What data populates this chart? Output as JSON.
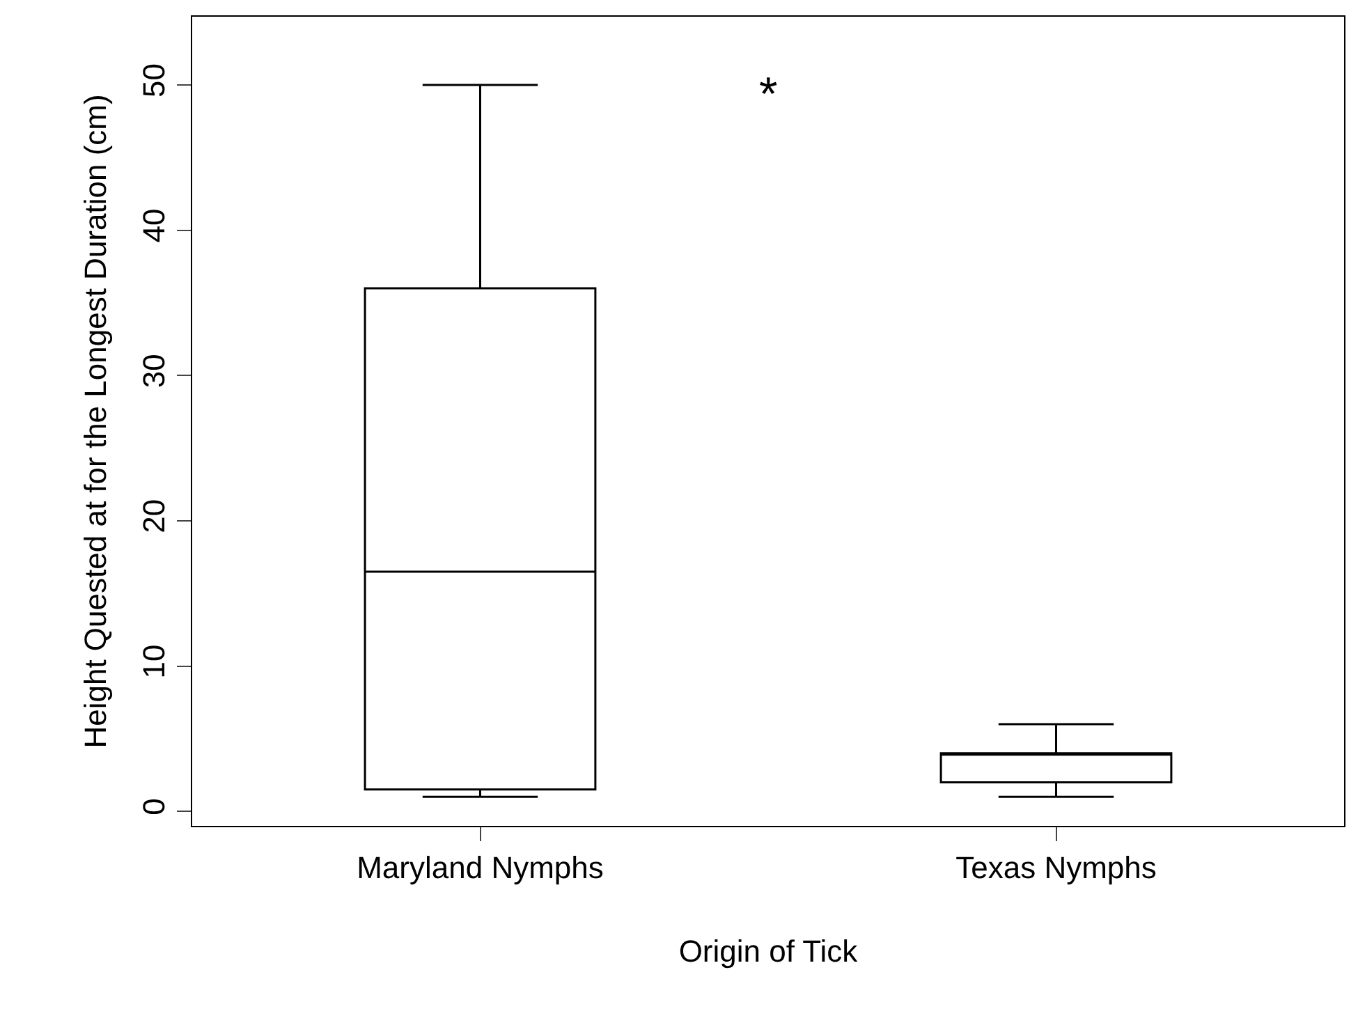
{
  "chart_data": {
    "type": "box",
    "xlabel": "Origin of Tick",
    "ylabel": "Height Quested at for the Longest Duration (cm)",
    "categories": [
      "Maryland Nymphs",
      "Texas Nymphs"
    ],
    "boxes": [
      {
        "low": 1,
        "q1": 1.5,
        "median": 16.5,
        "q3": 36,
        "high": 50
      },
      {
        "low": 1,
        "q1": 2,
        "median": 4,
        "q3": 4,
        "high": 6
      }
    ],
    "color": "#000000",
    "ylim": [
      -1,
      54.7
    ],
    "yticks": [
      0,
      10,
      20,
      30,
      40,
      50
    ],
    "annotations": [
      "*"
    ]
  }
}
